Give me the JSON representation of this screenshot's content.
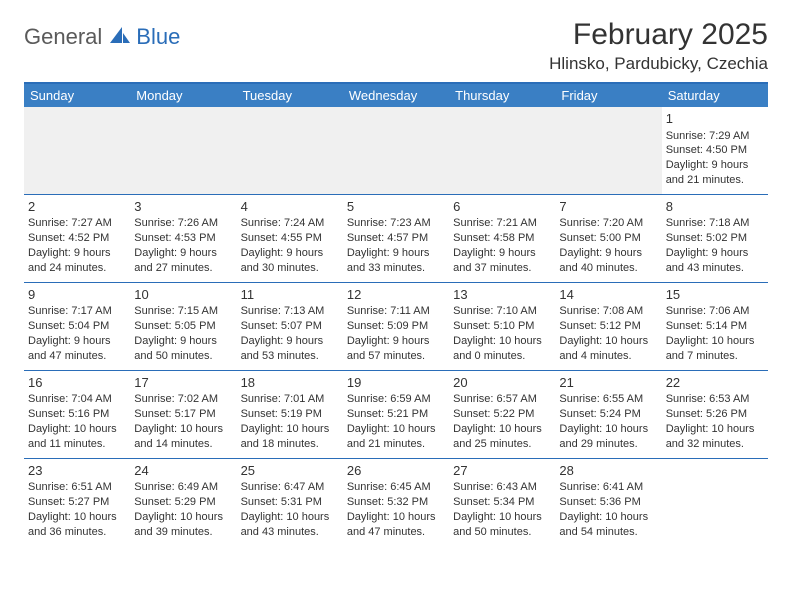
{
  "logo": {
    "general": "General",
    "blue": "Blue"
  },
  "title": "February 2025",
  "subtitle": "Hlinsko, Pardubicky, Czechia",
  "colors": {
    "header_bg": "#3a7fc4",
    "border": "#2a6db8",
    "text": "#333333",
    "empty_bg": "#f0f0f0",
    "white": "#ffffff"
  },
  "weekdays": [
    "Sunday",
    "Monday",
    "Tuesday",
    "Wednesday",
    "Thursday",
    "Friday",
    "Saturday"
  ],
  "weeks": [
    [
      null,
      null,
      null,
      null,
      null,
      null,
      {
        "n": "1",
        "sunrise": "Sunrise: 7:29 AM",
        "sunset": "Sunset: 4:50 PM",
        "daylight": "Daylight: 9 hours and 21 minutes."
      }
    ],
    [
      {
        "n": "2",
        "sunrise": "Sunrise: 7:27 AM",
        "sunset": "Sunset: 4:52 PM",
        "daylight": "Daylight: 9 hours and 24 minutes."
      },
      {
        "n": "3",
        "sunrise": "Sunrise: 7:26 AM",
        "sunset": "Sunset: 4:53 PM",
        "daylight": "Daylight: 9 hours and 27 minutes."
      },
      {
        "n": "4",
        "sunrise": "Sunrise: 7:24 AM",
        "sunset": "Sunset: 4:55 PM",
        "daylight": "Daylight: 9 hours and 30 minutes."
      },
      {
        "n": "5",
        "sunrise": "Sunrise: 7:23 AM",
        "sunset": "Sunset: 4:57 PM",
        "daylight": "Daylight: 9 hours and 33 minutes."
      },
      {
        "n": "6",
        "sunrise": "Sunrise: 7:21 AM",
        "sunset": "Sunset: 4:58 PM",
        "daylight": "Daylight: 9 hours and 37 minutes."
      },
      {
        "n": "7",
        "sunrise": "Sunrise: 7:20 AM",
        "sunset": "Sunset: 5:00 PM",
        "daylight": "Daylight: 9 hours and 40 minutes."
      },
      {
        "n": "8",
        "sunrise": "Sunrise: 7:18 AM",
        "sunset": "Sunset: 5:02 PM",
        "daylight": "Daylight: 9 hours and 43 minutes."
      }
    ],
    [
      {
        "n": "9",
        "sunrise": "Sunrise: 7:17 AM",
        "sunset": "Sunset: 5:04 PM",
        "daylight": "Daylight: 9 hours and 47 minutes."
      },
      {
        "n": "10",
        "sunrise": "Sunrise: 7:15 AM",
        "sunset": "Sunset: 5:05 PM",
        "daylight": "Daylight: 9 hours and 50 minutes."
      },
      {
        "n": "11",
        "sunrise": "Sunrise: 7:13 AM",
        "sunset": "Sunset: 5:07 PM",
        "daylight": "Daylight: 9 hours and 53 minutes."
      },
      {
        "n": "12",
        "sunrise": "Sunrise: 7:11 AM",
        "sunset": "Sunset: 5:09 PM",
        "daylight": "Daylight: 9 hours and 57 minutes."
      },
      {
        "n": "13",
        "sunrise": "Sunrise: 7:10 AM",
        "sunset": "Sunset: 5:10 PM",
        "daylight": "Daylight: 10 hours and 0 minutes."
      },
      {
        "n": "14",
        "sunrise": "Sunrise: 7:08 AM",
        "sunset": "Sunset: 5:12 PM",
        "daylight": "Daylight: 10 hours and 4 minutes."
      },
      {
        "n": "15",
        "sunrise": "Sunrise: 7:06 AM",
        "sunset": "Sunset: 5:14 PM",
        "daylight": "Daylight: 10 hours and 7 minutes."
      }
    ],
    [
      {
        "n": "16",
        "sunrise": "Sunrise: 7:04 AM",
        "sunset": "Sunset: 5:16 PM",
        "daylight": "Daylight: 10 hours and 11 minutes."
      },
      {
        "n": "17",
        "sunrise": "Sunrise: 7:02 AM",
        "sunset": "Sunset: 5:17 PM",
        "daylight": "Daylight: 10 hours and 14 minutes."
      },
      {
        "n": "18",
        "sunrise": "Sunrise: 7:01 AM",
        "sunset": "Sunset: 5:19 PM",
        "daylight": "Daylight: 10 hours and 18 minutes."
      },
      {
        "n": "19",
        "sunrise": "Sunrise: 6:59 AM",
        "sunset": "Sunset: 5:21 PM",
        "daylight": "Daylight: 10 hours and 21 minutes."
      },
      {
        "n": "20",
        "sunrise": "Sunrise: 6:57 AM",
        "sunset": "Sunset: 5:22 PM",
        "daylight": "Daylight: 10 hours and 25 minutes."
      },
      {
        "n": "21",
        "sunrise": "Sunrise: 6:55 AM",
        "sunset": "Sunset: 5:24 PM",
        "daylight": "Daylight: 10 hours and 29 minutes."
      },
      {
        "n": "22",
        "sunrise": "Sunrise: 6:53 AM",
        "sunset": "Sunset: 5:26 PM",
        "daylight": "Daylight: 10 hours and 32 minutes."
      }
    ],
    [
      {
        "n": "23",
        "sunrise": "Sunrise: 6:51 AM",
        "sunset": "Sunset: 5:27 PM",
        "daylight": "Daylight: 10 hours and 36 minutes."
      },
      {
        "n": "24",
        "sunrise": "Sunrise: 6:49 AM",
        "sunset": "Sunset: 5:29 PM",
        "daylight": "Daylight: 10 hours and 39 minutes."
      },
      {
        "n": "25",
        "sunrise": "Sunrise: 6:47 AM",
        "sunset": "Sunset: 5:31 PM",
        "daylight": "Daylight: 10 hours and 43 minutes."
      },
      {
        "n": "26",
        "sunrise": "Sunrise: 6:45 AM",
        "sunset": "Sunset: 5:32 PM",
        "daylight": "Daylight: 10 hours and 47 minutes."
      },
      {
        "n": "27",
        "sunrise": "Sunrise: 6:43 AM",
        "sunset": "Sunset: 5:34 PM",
        "daylight": "Daylight: 10 hours and 50 minutes."
      },
      {
        "n": "28",
        "sunrise": "Sunrise: 6:41 AM",
        "sunset": "Sunset: 5:36 PM",
        "daylight": "Daylight: 10 hours and 54 minutes."
      },
      null
    ]
  ]
}
